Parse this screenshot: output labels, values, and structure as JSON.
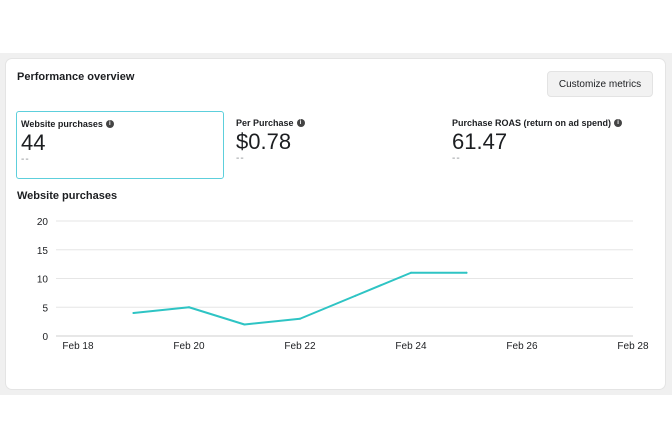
{
  "card": {
    "title": "Performance overview",
    "customize_label": "Customize metrics"
  },
  "metrics": [
    {
      "label": "Website purchases",
      "value": "44",
      "sub": "--",
      "icon": "info-icon"
    },
    {
      "label": "Per Purchase",
      "value": "$0.78",
      "sub": "--",
      "icon": "info-icon"
    },
    {
      "label": "Purchase ROAS (return on ad spend)",
      "value": "61.47",
      "sub": "--",
      "icon": "info-icon"
    }
  ],
  "colors": {
    "accent": "#2ec4c4",
    "active_border": "#5dcfdc",
    "grid": "#e6e6e6"
  },
  "chart_title": "Website purchases",
  "chart_data": {
    "type": "line",
    "title": "Website purchases",
    "xlabel": "",
    "ylabel": "",
    "x_ticks": [
      "Feb 18",
      "Feb 20",
      "Feb 22",
      "Feb 24",
      "Feb 26",
      "Feb 28"
    ],
    "y_ticks": [
      "0",
      "5",
      "10",
      "15",
      "20"
    ],
    "ylim": [
      0,
      20
    ],
    "xlim": [
      "Feb 18",
      "Feb 28"
    ],
    "grid": true,
    "series": [
      {
        "x": [
          "Feb 19",
          "Feb 20",
          "Feb 21",
          "Feb 22",
          "Feb 23",
          "Feb 24",
          "Feb 25"
        ],
        "values": [
          4,
          5,
          2,
          3,
          7,
          11,
          11
        ]
      }
    ]
  }
}
